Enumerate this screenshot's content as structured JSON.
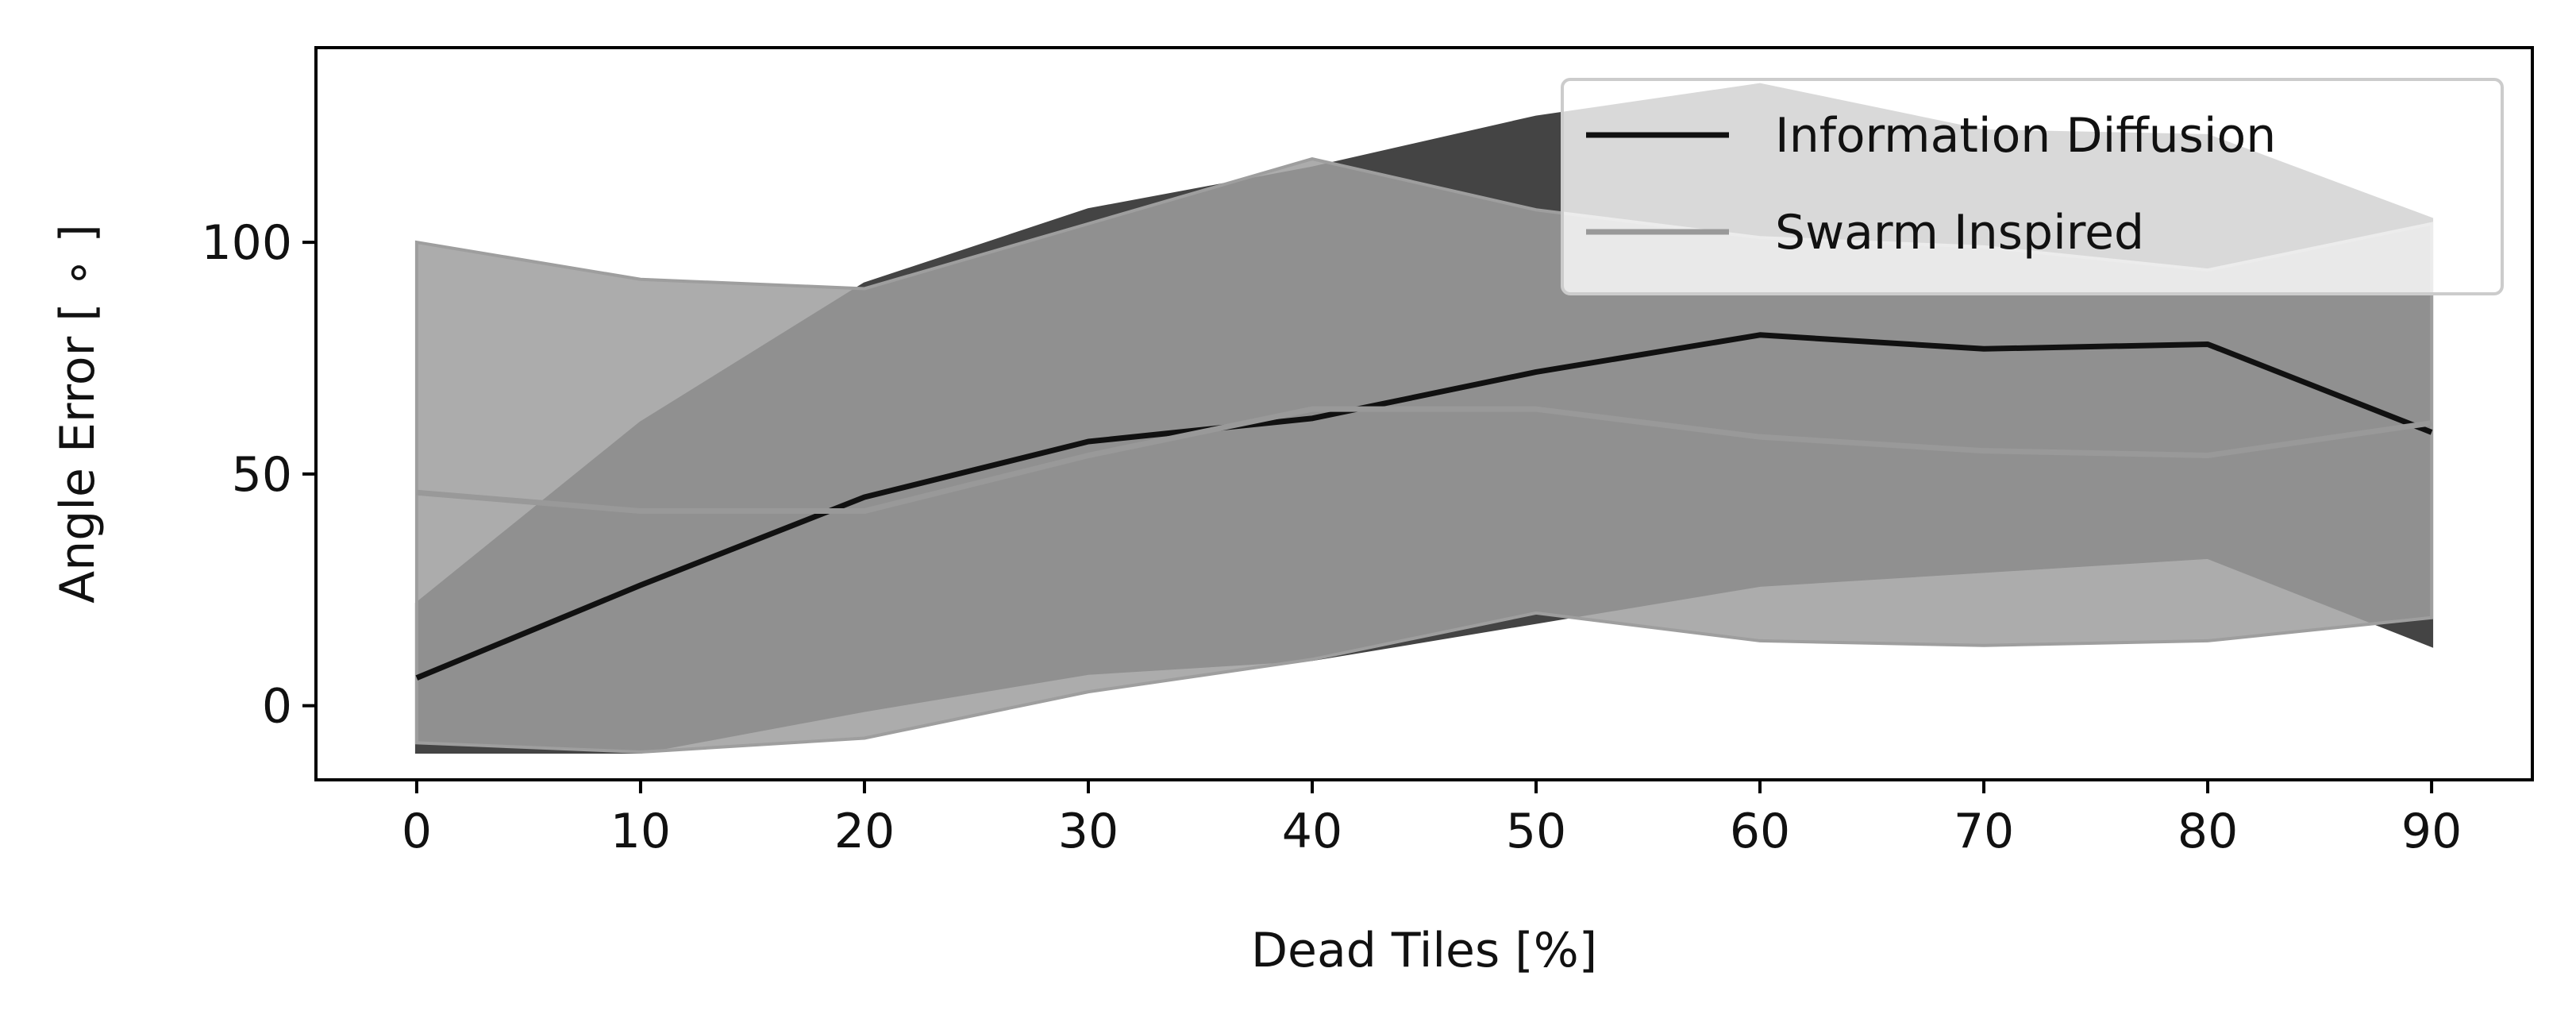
{
  "chart_data": {
    "type": "line",
    "x": [
      0,
      10,
      20,
      30,
      40,
      50,
      60,
      70,
      80,
      90
    ],
    "xlabel": "Dead Tiles [%]",
    "ylabel": "Angle Error [ ∘ ]",
    "xlim": [
      -4.5,
      94.5
    ],
    "ylim": [
      -16,
      142
    ],
    "xticks": [
      0,
      10,
      20,
      30,
      40,
      50,
      60,
      70,
      80,
      90
    ],
    "yticks": [
      0,
      50,
      100
    ],
    "grid": false,
    "legend_position": "top-right",
    "series": [
      {
        "name": "Information Diffusion",
        "color": "#111111",
        "band_color": "#444444",
        "mean": [
          6,
          26,
          45,
          57,
          62,
          72,
          80,
          77,
          78,
          59
        ],
        "upper": [
          22,
          61,
          91,
          107,
          116,
          127,
          134,
          124,
          123,
          105
        ],
        "lower": [
          -10,
          -10,
          -1,
          7,
          10,
          18,
          26,
          29,
          32,
          13
        ]
      },
      {
        "name": "Swarm Inspired",
        "color": "#999999",
        "band_color": "#9e9e9e",
        "mean": [
          46,
          42,
          42,
          54,
          64,
          64,
          58,
          55,
          54,
          61
        ],
        "upper": [
          100,
          92,
          90,
          104,
          118,
          107,
          101,
          99,
          94,
          104
        ],
        "lower": [
          -8,
          -10,
          -7,
          3,
          10,
          20,
          14,
          13,
          14,
          19
        ]
      }
    ]
  }
}
